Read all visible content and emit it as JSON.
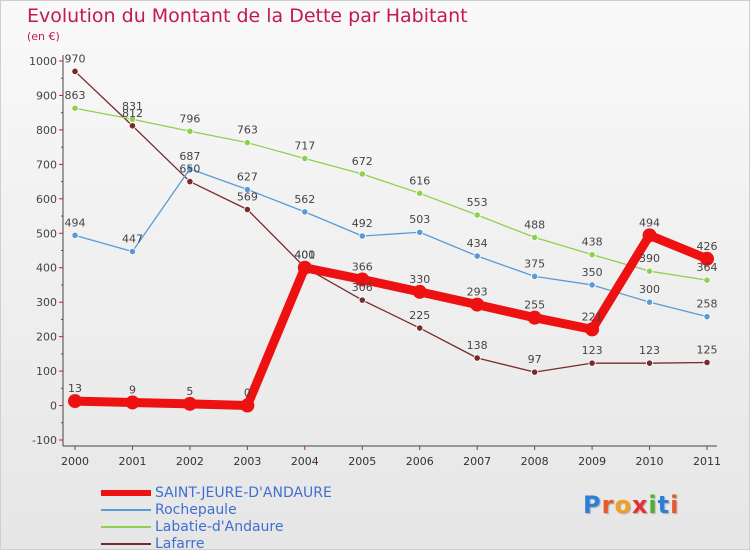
{
  "header": {
    "title": "Evolution du Montant de la Dette par Habitant",
    "subtitle": "(en €)"
  },
  "brand": {
    "text": "Proxiti",
    "colors": [
      "#2e7fd8",
      "#e85a2a",
      "#f0a020",
      "#e83030",
      "#50b030",
      "#2e7fd8",
      "#e85a2a"
    ]
  },
  "colors": {
    "title": "#c2185b",
    "axis_tick": "#c2185b",
    "legend_text": "#3f6fd0"
  },
  "chart_data": {
    "type": "line",
    "title": "Evolution du Montant de la Dette par Habitant",
    "subtitle": "(en €)",
    "xlabel": "",
    "ylabel": "",
    "x": [
      "2000",
      "2001",
      "2002",
      "2003",
      "2004",
      "2005",
      "2006",
      "2007",
      "2008",
      "2009",
      "2010",
      "2011"
    ],
    "yticks": [
      "-100",
      "0",
      "100",
      "200",
      "300",
      "400",
      "500",
      "600",
      "700",
      "800",
      "900",
      "1000"
    ],
    "ylim": [
      -100,
      1000
    ],
    "grid": false,
    "legend_position": "bottom-left",
    "series": [
      {
        "name": "SAINT-JEURE-D'ANDAURE",
        "color": "#ee1111",
        "values": [
          13,
          9,
          5,
          0,
          400,
          366,
          330,
          293,
          255,
          221,
          494,
          426
        ],
        "labels": [
          "13",
          "9",
          "5",
          "0",
          "400",
          "366",
          "330",
          "293",
          "255",
          "221",
          "494",
          "426"
        ]
      },
      {
        "name": "Rochepaule",
        "color": "#5b9bd5",
        "values": [
          494,
          447,
          687,
          627,
          562,
          492,
          503,
          434,
          375,
          350,
          300,
          258
        ],
        "labels": [
          "494",
          "447",
          "687",
          "627",
          "562",
          "492",
          "503",
          "434",
          "375",
          "350",
          "300",
          "258"
        ]
      },
      {
        "name": "Labatie-d'Andaure",
        "color": "#90d050",
        "values": [
          863,
          831,
          796,
          763,
          717,
          672,
          616,
          553,
          488,
          438,
          390,
          364
        ],
        "labels": [
          "863",
          "831",
          "796",
          "763",
          "717",
          "672",
          "616",
          "553",
          "488",
          "438",
          "390",
          "364"
        ]
      },
      {
        "name": "Lafarre",
        "color": "#7a2a2a",
        "values": [
          970,
          812,
          650,
          569,
          401,
          306,
          225,
          138,
          97,
          123,
          123,
          125
        ],
        "labels": [
          "970",
          "812",
          "650",
          "569",
          "401",
          "306",
          "225",
          "138",
          "97",
          "123",
          "123",
          "125"
        ]
      }
    ]
  }
}
